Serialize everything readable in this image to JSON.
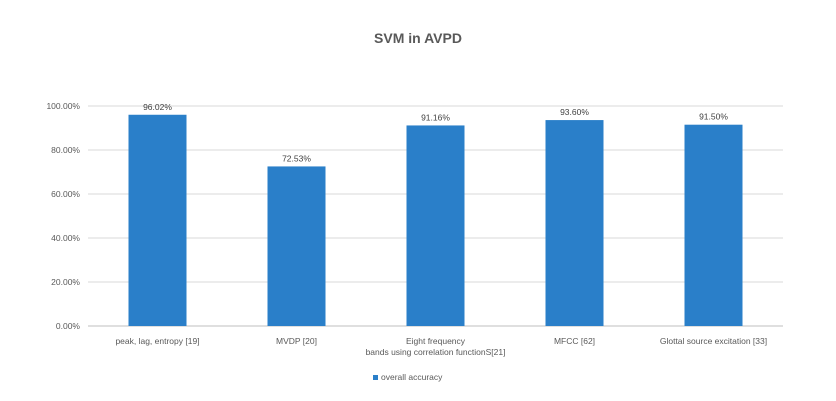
{
  "chart_data": {
    "type": "bar",
    "title": "SVM in AVPD",
    "categories": [
      [
        "peak, lag, entropy [19]"
      ],
      [
        "MVDP [20]"
      ],
      [
        "Eight frequency",
        "bands using correlation functionS[21]"
      ],
      [
        "MFCC [62]"
      ],
      [
        "Glottal source excitation [33]"
      ]
    ],
    "series": [
      {
        "name": "overall accuracy",
        "color": "#2a7fc9",
        "values": [
          96.02,
          72.53,
          91.16,
          93.6,
          91.5
        ],
        "labels": [
          "96.02%",
          "72.53%",
          "91.16%",
          "93.60%",
          "91.50%"
        ]
      }
    ],
    "ylim": [
      0,
      100
    ],
    "yticks": [
      "0.00%",
      "20.00%",
      "40.00%",
      "60.00%",
      "80.00%",
      "100.00%"
    ],
    "grid": true,
    "legend_position": "bottom"
  }
}
